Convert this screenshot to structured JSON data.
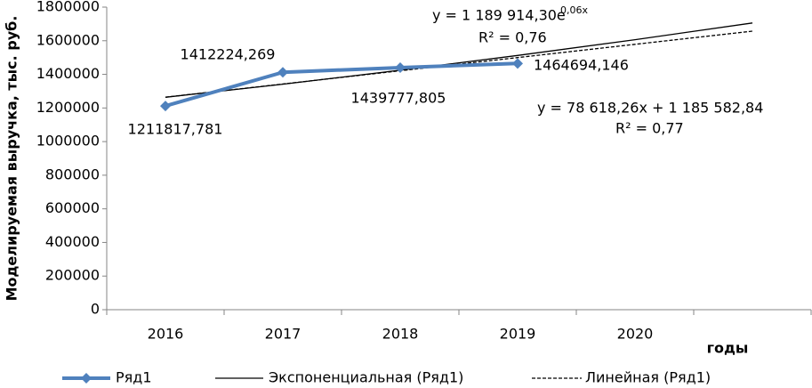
{
  "chart_data": {
    "type": "line",
    "y_label": "Моделируемая выручка, тыс. руб.",
    "x_label": "годы",
    "categories": [
      "2016",
      "2017",
      "2018",
      "2019",
      "2020",
      null
    ],
    "ylim": [
      0,
      1800000
    ],
    "yticks": [
      0,
      200000,
      400000,
      600000,
      800000,
      1000000,
      1200000,
      1400000,
      1600000,
      1800000
    ],
    "grid": false,
    "series": [
      {
        "name": "Ряд1",
        "color": "#4f81bd",
        "marker": "diamond",
        "values": [
          1211817.781,
          1412224.269,
          1439777.805,
          1464694.146,
          null,
          null
        ],
        "value_labels": [
          "1211817,781",
          "1412224,269",
          "1439777,805",
          "1464694,146",
          null,
          null
        ]
      },
      {
        "name": "Экспоненциальная (Ряд1)",
        "color": "#000000",
        "style": "solid",
        "values": [
          1263494,
          1341622,
          1424583,
          1512676,
          1606217,
          1705543
        ]
      },
      {
        "name": "Линейная (Ряд1)",
        "color": "#000000",
        "style": "dashed",
        "values": [
          1264201,
          1342819,
          1421438,
          1500056,
          1578674,
          1657292
        ]
      }
    ],
    "annotations": {
      "exp_equation": "y = 1 189 914,30e",
      "exp_exponent": "0,06x",
      "exp_r2": "R² = 0,76",
      "lin_equation": "y = 78 618,26x + 1 185 582,84",
      "lin_r2": "R² = 0,77"
    }
  }
}
